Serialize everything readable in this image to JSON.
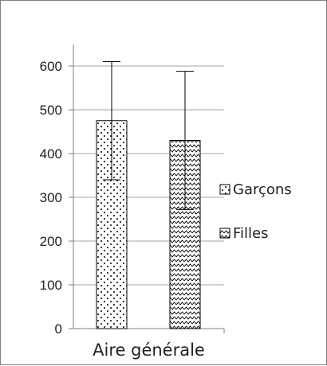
{
  "chart_data": {
    "type": "bar",
    "categories": [
      "Aire générale"
    ],
    "series": [
      {
        "name": "Garçons",
        "values": [
          475
        ],
        "error": [
          135
        ],
        "pattern": "dotted"
      },
      {
        "name": "Filles",
        "values": [
          430
        ],
        "error": [
          158
        ],
        "pattern": "wave"
      }
    ],
    "ylim": [
      0,
      600
    ],
    "yticks": [
      0,
      100,
      200,
      300,
      400,
      500,
      600
    ],
    "ytick_labels": [
      "0",
      "100",
      "200",
      "300",
      "400",
      "500",
      "600"
    ],
    "grid": true,
    "legend": "right",
    "colors": {
      "bar_stroke": "#000000",
      "grid": "#a6a6a6",
      "axis": "#7f7f7f"
    }
  }
}
